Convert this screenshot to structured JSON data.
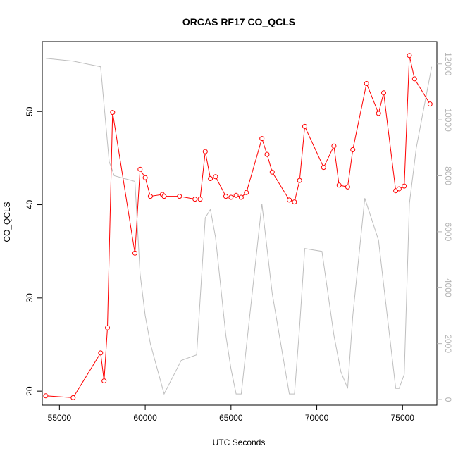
{
  "chart_data": {
    "type": "line",
    "title": "ORCAS RF17 CO_QCLS",
    "xlabel": "UTC Seconds",
    "ylabel": "CO_QCLS",
    "xlim": [
      54000,
      77000
    ],
    "ylim": [
      18.5,
      57.5
    ],
    "y2lim": [
      -200,
      12800
    ],
    "xticks": [
      55000,
      60000,
      65000,
      70000,
      75000
    ],
    "yticks": [
      20,
      30,
      40,
      50
    ],
    "y2ticks": [
      0,
      2000,
      4000,
      6000,
      8000,
      10000,
      12000
    ],
    "grid": false,
    "colors": {
      "primary": "#ff0000",
      "secondary": "#bebebe",
      "axis": "#000000",
      "secondary_axis": "#b3b3b3"
    },
    "series": [
      {
        "axis": "left",
        "markers": true,
        "x": [
          54200,
          55800,
          57400,
          57600,
          57800,
          58100,
          59400,
          59700,
          60000,
          60300,
          61000,
          61100,
          62000,
          62900,
          63200,
          63500,
          63800,
          64100,
          64700,
          65000,
          65300,
          65600,
          65900,
          66800,
          67100,
          67400,
          68400,
          68700,
          69000,
          69300,
          70400,
          71000,
          71300,
          71800,
          72100,
          72900,
          73600,
          73900,
          74600,
          74800,
          75100,
          75400,
          75700,
          76600
        ],
        "y": [
          19.5,
          19.3,
          24.1,
          21.1,
          26.8,
          49.9,
          34.8,
          43.8,
          42.9,
          40.9,
          41.1,
          40.9,
          40.9,
          40.6,
          40.6,
          45.7,
          42.8,
          43.0,
          40.9,
          40.8,
          41.0,
          40.8,
          41.3,
          47.1,
          45.4,
          43.5,
          40.5,
          40.3,
          42.6,
          48.4,
          44.0,
          46.3,
          42.1,
          41.9,
          45.9,
          53.0,
          49.8,
          52.0,
          41.5,
          41.7,
          42.0,
          56.0,
          53.5,
          50.8
        ]
      },
      {
        "axis": "right",
        "markers": false,
        "x": [
          54200,
          55800,
          57400,
          57900,
          58200,
          59400,
          59700,
          60000,
          60300,
          61100,
          62100,
          63000,
          63500,
          63800,
          64100,
          64700,
          65000,
          65300,
          65600,
          66800,
          67400,
          68400,
          68700,
          69000,
          69300,
          70300,
          71000,
          71400,
          71800,
          72100,
          72800,
          73600,
          73900,
          74600,
          74800,
          75100,
          75400,
          75800,
          76700
        ],
        "y": [
          12200,
          12100,
          11900,
          8500,
          8000,
          7800,
          4500,
          3000,
          2000,
          200,
          1400,
          1600,
          6500,
          6800,
          5800,
          2300,
          1100,
          200,
          200,
          7000,
          3800,
          200,
          200,
          2600,
          5400,
          5300,
          2300,
          1000,
          400,
          3000,
          7200,
          5700,
          4100,
          400,
          400,
          900,
          7000,
          9000,
          11900
        ]
      }
    ]
  }
}
